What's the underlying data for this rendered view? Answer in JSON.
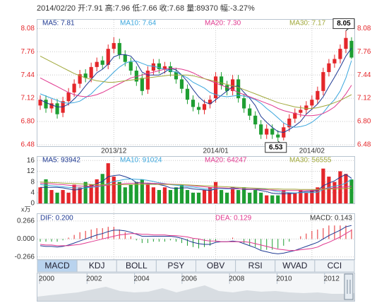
{
  "header": "2014/02/20 开:7.91 高:7.96 低:7.66 收:7.68 量:89370 幅:-3.27%",
  "chart_data": [
    {
      "type": "candlestick",
      "up_color": "#e4262a",
      "down_color": "#1e9e32",
      "categories": [
        null,
        null,
        null,
        null,
        null,
        null,
        null,
        null,
        null,
        null,
        null,
        null,
        null,
        "2013/12",
        null,
        null,
        null,
        null,
        null,
        null,
        null,
        null,
        null,
        null,
        null,
        null,
        null,
        null,
        null,
        null,
        null,
        "2014/01",
        null,
        null,
        null,
        null,
        null,
        null,
        null,
        null,
        null,
        null,
        null,
        null,
        null,
        null,
        null,
        null,
        "2014/02",
        null,
        null,
        null,
        null,
        null,
        null,
        null
      ],
      "open": [
        7.02,
        7.1,
        6.98,
        7.05,
        6.92,
        7.08,
        7.2,
        7.32,
        7.46,
        7.4,
        7.55,
        7.64,
        7.58,
        7.8,
        7.88,
        7.72,
        7.62,
        7.5,
        7.4,
        7.24,
        7.5,
        7.6,
        7.52,
        7.56,
        7.48,
        7.38,
        7.25,
        7.1,
        7.0,
        6.96,
        7.04,
        7.12,
        7.42,
        7.3,
        7.22,
        7.38,
        7.12,
        6.98,
        6.88,
        6.76,
        6.62,
        6.7,
        6.62,
        6.58,
        6.72,
        6.84,
        6.92,
        6.96,
        7.02,
        7.1,
        7.22,
        7.48,
        7.6,
        7.66,
        7.8,
        7.91
      ],
      "high": [
        7.16,
        7.16,
        7.11,
        7.11,
        7.14,
        7.26,
        7.38,
        7.51,
        7.52,
        7.61,
        7.68,
        7.7,
        7.86,
        7.96,
        7.94,
        7.78,
        7.68,
        7.56,
        7.46,
        7.56,
        7.66,
        7.66,
        7.62,
        7.62,
        7.54,
        7.44,
        7.31,
        7.16,
        7.06,
        7.1,
        7.16,
        7.48,
        7.48,
        7.36,
        7.44,
        7.44,
        7.18,
        7.04,
        6.94,
        6.82,
        6.76,
        6.76,
        6.68,
        6.78,
        6.9,
        6.98,
        7.02,
        7.08,
        7.16,
        7.28,
        7.54,
        7.66,
        7.72,
        7.86,
        8.05,
        7.96
      ],
      "low": [
        6.96,
        6.92,
        6.92,
        6.84,
        6.86,
        7.02,
        7.14,
        7.26,
        7.34,
        7.34,
        7.49,
        7.52,
        7.52,
        7.74,
        7.66,
        7.56,
        7.44,
        7.29,
        7.16,
        7.18,
        7.44,
        7.46,
        7.46,
        7.42,
        7.32,
        7.19,
        7.04,
        6.94,
        6.9,
        6.9,
        6.98,
        7.06,
        7.24,
        7.16,
        7.16,
        7.06,
        6.92,
        6.82,
        6.7,
        6.56,
        6.56,
        6.56,
        6.53,
        6.54,
        6.66,
        6.78,
        6.86,
        6.9,
        6.96,
        7.04,
        7.16,
        7.42,
        7.54,
        7.6,
        7.74,
        7.66
      ],
      "close": [
        7.1,
        6.98,
        7.05,
        6.9,
        7.08,
        7.2,
        7.32,
        7.45,
        7.4,
        7.55,
        7.62,
        7.58,
        7.8,
        7.88,
        7.72,
        7.62,
        7.5,
        7.35,
        7.22,
        7.5,
        7.6,
        7.52,
        7.56,
        7.48,
        7.38,
        7.25,
        7.1,
        7.0,
        6.96,
        7.04,
        7.1,
        7.42,
        7.3,
        7.22,
        7.38,
        7.12,
        6.98,
        6.88,
        6.76,
        6.62,
        6.7,
        6.62,
        6.58,
        6.72,
        6.84,
        6.92,
        6.96,
        7.02,
        7.1,
        7.22,
        7.48,
        7.6,
        7.66,
        7.8,
        7.95,
        7.68
      ],
      "series": [
        {
          "name": "MA5: 7.81",
          "color": "#1f3a93",
          "values": [
            7.1,
            7.06,
            7.03,
            7.0,
            7.0,
            7.04,
            7.11,
            7.19,
            7.29,
            7.38,
            7.47,
            7.52,
            7.59,
            7.69,
            7.72,
            7.72,
            7.7,
            7.61,
            7.48,
            7.44,
            7.44,
            7.44,
            7.48,
            7.53,
            7.51,
            7.44,
            7.35,
            7.24,
            7.14,
            7.07,
            7.04,
            7.1,
            7.16,
            7.22,
            7.28,
            7.29,
            7.2,
            7.12,
            7.02,
            6.87,
            6.79,
            6.72,
            6.66,
            6.65,
            6.69,
            6.74,
            6.8,
            6.9,
            6.97,
            7.04,
            7.14,
            7.28,
            7.41,
            7.55,
            7.7,
            7.81
          ]
        },
        {
          "name": "MA10: 7.64",
          "color": "#3aa6dd",
          "values": [
            7.18,
            7.15,
            7.12,
            7.09,
            7.06,
            7.05,
            7.06,
            7.08,
            7.13,
            7.18,
            7.26,
            7.33,
            7.4,
            7.48,
            7.55,
            7.6,
            7.63,
            7.63,
            7.6,
            7.57,
            7.56,
            7.54,
            7.52,
            7.5,
            7.48,
            7.44,
            7.4,
            7.34,
            7.3,
            7.26,
            7.2,
            7.17,
            7.15,
            7.14,
            7.15,
            7.16,
            7.15,
            7.13,
            7.1,
            7.05,
            6.98,
            6.92,
            6.85,
            6.78,
            6.74,
            6.72,
            6.73,
            6.75,
            6.79,
            6.85,
            6.92,
            7.02,
            7.1,
            7.22,
            7.4,
            7.64
          ]
        },
        {
          "name": "MA20: 7.30",
          "color": "#e0388f",
          "values": [
            7.4,
            7.36,
            7.32,
            7.28,
            7.24,
            7.2,
            7.17,
            7.15,
            7.14,
            7.15,
            7.17,
            7.2,
            7.24,
            7.28,
            7.32,
            7.36,
            7.4,
            7.42,
            7.44,
            7.46,
            7.48,
            7.5,
            7.52,
            7.53,
            7.53,
            7.52,
            7.5,
            7.47,
            7.43,
            7.39,
            7.36,
            7.33,
            7.3,
            7.27,
            7.24,
            7.2,
            7.17,
            7.14,
            7.11,
            7.08,
            7.05,
            7.02,
            6.98,
            6.95,
            6.93,
            6.91,
            6.89,
            6.88,
            6.88,
            6.89,
            6.91,
            6.95,
            7.0,
            7.08,
            7.18,
            7.3
          ]
        },
        {
          "name": "MA30: 7.17",
          "color": "#a0a83a",
          "values": [
            7.7,
            7.66,
            7.62,
            7.58,
            7.54,
            7.5,
            7.46,
            7.43,
            7.4,
            7.38,
            7.36,
            7.35,
            7.34,
            7.34,
            7.35,
            7.36,
            7.37,
            7.38,
            7.39,
            7.4,
            7.41,
            7.42,
            7.43,
            7.44,
            7.44,
            7.44,
            7.44,
            7.43,
            7.41,
            7.39,
            7.37,
            7.35,
            7.33,
            7.31,
            7.29,
            7.27,
            7.24,
            7.21,
            7.18,
            7.15,
            7.12,
            7.09,
            7.06,
            7.04,
            7.02,
            7.0,
            6.99,
            6.98,
            6.98,
            6.99,
            7.01,
            7.03,
            7.06,
            7.09,
            7.13,
            7.17
          ]
        }
      ],
      "annotations": [
        "8.05",
        "6.53"
      ],
      "ylim": [
        6.46,
        8.2
      ],
      "yticks": [
        8.08,
        7.76,
        7.44,
        7.12,
        {
          "value": 6.8,
          "label": "6.80"
        },
        6.48
      ],
      "grid": true
    },
    {
      "type": "bar",
      "unit": "x万",
      "values": [
        6,
        9,
        5,
        4,
        5,
        4,
        7,
        6,
        8,
        7,
        9,
        11,
        15,
        10,
        8,
        6,
        7,
        8,
        9,
        7,
        6,
        5,
        6,
        5,
        6,
        7,
        5,
        4,
        4,
        5,
        6,
        8,
        5,
        4,
        6,
        5,
        6,
        4,
        5,
        4,
        3,
        3,
        3,
        5,
        4,
        4,
        5,
        4,
        5,
        6,
        13,
        10,
        8,
        12,
        11,
        8.94
      ],
      "series": [
        {
          "name": "MA5: 93942",
          "color": "#1f3a93",
          "values": [
            6,
            6,
            6,
            6,
            5.8,
            5.4,
            5,
            5.2,
            6,
            6.4,
            7.4,
            8.2,
            10,
            10.4,
            10.6,
            10,
            9.2,
            7.8,
            7.6,
            7.4,
            7.4,
            7,
            6.6,
            5.8,
            5.6,
            5.8,
            5.8,
            5.4,
            5.2,
            5,
            4.8,
            5.4,
            5.6,
            5.6,
            5.8,
            5.6,
            5.2,
            5.2,
            5.2,
            4.8,
            4.4,
            3.8,
            3.6,
            3.6,
            3.6,
            3.8,
            4.2,
            4.4,
            4.4,
            4.8,
            6.6,
            7.6,
            8.4,
            9.8,
            10.8,
            9.39
          ]
        },
        {
          "name": "MA10: 91024",
          "color": "#3aa6dd",
          "values": [
            7,
            6.8,
            6.6,
            6.4,
            6.2,
            6,
            5.8,
            5.7,
            5.8,
            6,
            6.2,
            6.6,
            7.5,
            8.2,
            8.6,
            9,
            9.1,
            9,
            8.9,
            8.6,
            8.2,
            7.7,
            7.4,
            7,
            6.8,
            6.6,
            6.3,
            6.1,
            5.8,
            5.4,
            5.3,
            5.5,
            5.5,
            5.4,
            5.4,
            5.4,
            5.5,
            5.4,
            5.4,
            5.4,
            5.2,
            4.8,
            4.4,
            4.2,
            4,
            3.9,
            4,
            4,
            4,
            4.2,
            5.2,
            6,
            6.4,
            6.8,
            7.6,
            9.1
          ]
        },
        {
          "name": "MA20: 64247",
          "color": "#e0388f",
          "values": [
            7.5,
            7.4,
            7.3,
            7.1,
            7,
            6.8,
            6.6,
            6.5,
            6.4,
            6.4,
            6.5,
            6.6,
            6.8,
            7,
            7.2,
            7.4,
            7.5,
            7.6,
            7.6,
            7.6,
            7.5,
            7.4,
            7.3,
            7.2,
            7.1,
            7,
            6.8,
            6.6,
            6.4,
            6.2,
            6,
            5.9,
            5.8,
            5.7,
            5.6,
            5.5,
            5.4,
            5.3,
            5.3,
            5.2,
            5.1,
            5,
            4.9,
            4.8,
            4.8,
            4.8,
            4.8,
            4.8,
            4.9,
            5,
            5.3,
            5.6,
            5.8,
            6,
            6.2,
            6.42
          ]
        },
        {
          "name": "MA30: 56555",
          "color": "#a0a83a",
          "values": [
            8,
            7.9,
            7.8,
            7.7,
            7.6,
            7.5,
            7.4,
            7.3,
            7.2,
            7.1,
            7,
            7,
            7,
            7,
            7,
            7,
            7,
            7,
            7.1,
            7.1,
            7.1,
            7.1,
            7.1,
            7.1,
            7,
            7,
            6.9,
            6.8,
            6.7,
            6.6,
            6.5,
            6.4,
            6.3,
            6.2,
            6.1,
            6,
            5.9,
            5.8,
            5.7,
            5.6,
            5.5,
            5.4,
            5.4,
            5.3,
            5.3,
            5.3,
            5.2,
            5.2,
            5.2,
            5.2,
            5.3,
            5.4,
            5.4,
            5.5,
            5.6,
            5.66
          ]
        }
      ],
      "ylim": [
        0,
        17.4
      ],
      "yticks": [
        16,
        12,
        8,
        4,
        0
      ],
      "grid": true
    },
    {
      "type": "macd",
      "series": [
        {
          "name": "DIF: 0.200",
          "color": "#1f3a93",
          "values": [
            -0.1,
            -0.11,
            -0.11,
            -0.12,
            -0.11,
            -0.09,
            -0.06,
            -0.03,
            0.0,
            0.03,
            0.06,
            0.08,
            0.11,
            0.13,
            0.13,
            0.12,
            0.1,
            0.07,
            0.04,
            0.04,
            0.04,
            0.04,
            0.04,
            0.04,
            0.03,
            0.01,
            -0.02,
            -0.05,
            -0.07,
            -0.08,
            -0.08,
            -0.05,
            -0.04,
            -0.04,
            -0.03,
            -0.04,
            -0.07,
            -0.1,
            -0.13,
            -0.17,
            -0.19,
            -0.21,
            -0.22,
            -0.21,
            -0.19,
            -0.17,
            -0.14,
            -0.11,
            -0.08,
            -0.05,
            0.0,
            0.05,
            0.09,
            0.13,
            0.18,
            0.2
          ]
        },
        {
          "name": "DEA: 0.129",
          "color": "#e0388f",
          "values": [
            -0.08,
            -0.09,
            -0.09,
            -0.1,
            -0.1,
            -0.1,
            -0.09,
            -0.08,
            -0.06,
            -0.04,
            -0.02,
            0.0,
            0.02,
            0.04,
            0.06,
            0.07,
            0.08,
            0.08,
            0.07,
            0.07,
            0.06,
            0.06,
            0.06,
            0.05,
            0.05,
            0.04,
            0.03,
            0.01,
            0.0,
            -0.02,
            -0.03,
            -0.03,
            -0.04,
            -0.04,
            -0.04,
            -0.04,
            -0.04,
            -0.05,
            -0.07,
            -0.09,
            -0.11,
            -0.13,
            -0.15,
            -0.16,
            -0.17,
            -0.17,
            -0.16,
            -0.15,
            -0.14,
            -0.12,
            -0.08,
            -0.05,
            -0.01,
            0.03,
            0.08,
            0.129
          ]
        }
      ],
      "histogram": {
        "name": "MACD: 0.143",
        "values": [
          -0.04,
          -0.04,
          -0.04,
          -0.04,
          -0.02,
          0.02,
          0.06,
          0.1,
          0.12,
          0.14,
          0.16,
          0.16,
          0.18,
          0.18,
          0.14,
          0.1,
          0.04,
          -0.02,
          -0.06,
          -0.06,
          -0.04,
          -0.04,
          -0.04,
          -0.02,
          -0.04,
          -0.06,
          -0.1,
          -0.12,
          -0.14,
          -0.12,
          -0.1,
          -0.04,
          0.0,
          0.0,
          0.02,
          0.0,
          -0.06,
          -0.1,
          -0.12,
          -0.16,
          -0.16,
          -0.16,
          -0.14,
          -0.1,
          -0.04,
          0.0,
          0.04,
          0.08,
          0.12,
          0.14,
          0.16,
          0.2,
          0.2,
          0.2,
          0.2,
          0.143
        ]
      },
      "ylim": [
        -0.3,
        0.37
      ],
      "yticks": [
        0.266,
        {
          "value": 0,
          "label": "0.000"
        },
        -0.266
      ],
      "grid": true
    }
  ],
  "tabs": [
    "MACD",
    "KDJ",
    "BOLL",
    "PSY",
    "OBV",
    "RSI",
    "WVAD",
    "CCI"
  ],
  "timeline": {
    "labels": [
      "2000",
      "2002",
      "2004",
      "2006",
      "2008",
      "2010",
      "2012"
    ]
  }
}
